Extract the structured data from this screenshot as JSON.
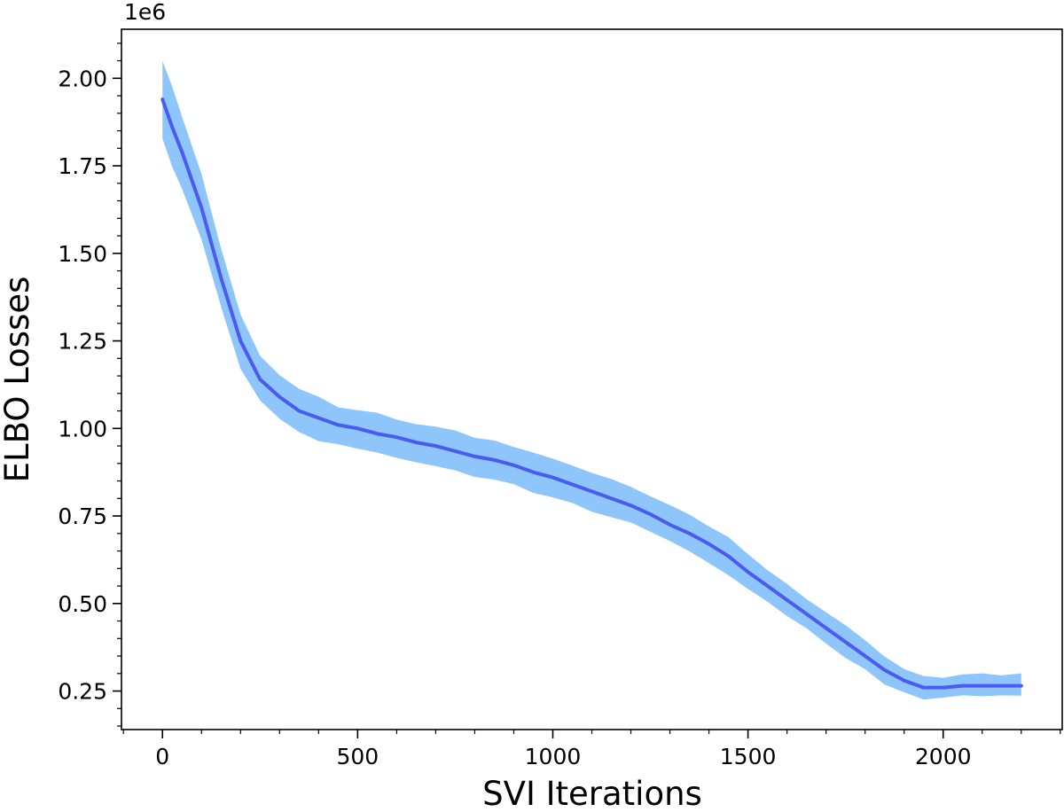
{
  "chart_data": {
    "type": "line",
    "xlabel": "SVI Iterations",
    "ylabel": "ELBO Losses",
    "y_offset_label": "1e6",
    "xlim": [
      -105,
      2305
    ],
    "ylim": [
      0.14,
      2.14
    ],
    "x_ticks": [
      0,
      500,
      1000,
      1500,
      2000
    ],
    "x_tick_labels": [
      "0",
      "500",
      "1000",
      "1500",
      "2000"
    ],
    "y_ticks": [
      0.25,
      0.5,
      0.75,
      1.0,
      1.25,
      1.5,
      1.75,
      2.0
    ],
    "y_tick_labels": [
      "0.25",
      "0.50",
      "0.75",
      "1.00",
      "1.25",
      "1.50",
      "1.75",
      "2.00"
    ],
    "grid": false,
    "colors": {
      "line": "#4a5cf0",
      "band": "#8ec5fa"
    },
    "series": [
      {
        "x": [
          0,
          25,
          50,
          100,
          150,
          200,
          250,
          300,
          350,
          400,
          450,
          500,
          550,
          600,
          650,
          700,
          750,
          800,
          850,
          900,
          950,
          1000,
          1050,
          1100,
          1150,
          1200,
          1250,
          1300,
          1350,
          1400,
          1450,
          1500,
          1550,
          1600,
          1650,
          1700,
          1750,
          1800,
          1850,
          1900,
          1950,
          2000,
          2050,
          2100,
          2150,
          2200
        ],
        "y": [
          1.94,
          1.86,
          1.79,
          1.63,
          1.43,
          1.25,
          1.14,
          1.09,
          1.05,
          1.03,
          1.01,
          1.0,
          0.985,
          0.975,
          0.96,
          0.95,
          0.935,
          0.92,
          0.91,
          0.895,
          0.875,
          0.86,
          0.84,
          0.82,
          0.8,
          0.78,
          0.755,
          0.725,
          0.7,
          0.67,
          0.635,
          0.59,
          0.55,
          0.51,
          0.47,
          0.43,
          0.39,
          0.35,
          0.31,
          0.28,
          0.26,
          0.26,
          0.265,
          0.265,
          0.265,
          0.265
        ],
        "band_halfwidth": [
          0.11,
          0.105,
          0.1,
          0.09,
          0.08,
          0.07,
          0.06,
          0.06,
          0.055,
          0.055,
          0.05,
          0.05,
          0.05,
          0.05,
          0.05,
          0.05,
          0.048,
          0.048,
          0.048,
          0.048,
          0.047,
          0.047,
          0.046,
          0.046,
          0.045,
          0.045,
          0.045,
          0.044,
          0.044,
          0.043,
          0.043,
          0.042,
          0.042,
          0.041,
          0.04,
          0.038,
          0.036,
          0.034,
          0.032,
          0.03,
          0.028,
          0.027,
          0.026,
          0.026,
          0.026,
          0.026
        ]
      }
    ]
  }
}
